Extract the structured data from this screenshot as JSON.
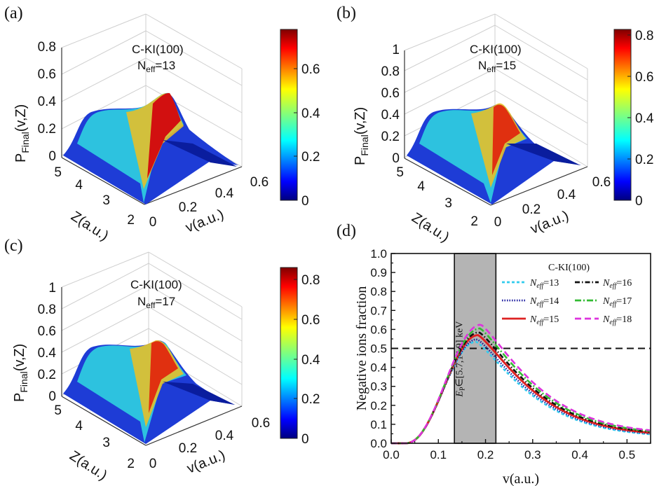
{
  "panels": [
    {
      "letter": "(a)",
      "material": "C-KI(100)",
      "neff_prefix": "N",
      "neff_sub": "eff",
      "neff_value": "=13",
      "zaxis_label": "P",
      "zaxis_sub": "Final",
      "zaxis_tail": "(v,Z)",
      "xaxis_label": "v(a.u.)",
      "yaxis_label": "Z(a.u.)",
      "z_ticks": [
        "0",
        "0.2",
        "0.4",
        "0.6",
        "0.8"
      ],
      "v_ticks": [
        "0",
        "0.2",
        "0.4",
        "0.6"
      ],
      "Z_ticks": [
        "5",
        "4",
        "3",
        "2"
      ],
      "colorbar_ticks": [
        "0",
        "0.2",
        "0.4",
        "0.6"
      ]
    },
    {
      "letter": "(b)",
      "material": "C-KI(100)",
      "neff_prefix": "N",
      "neff_sub": "eff",
      "neff_value": "=15",
      "zaxis_label": "P",
      "zaxis_sub": "Final",
      "zaxis_tail": "(v,Z)",
      "xaxis_label": "v(a.u.)",
      "yaxis_label": "Z(a.u.)",
      "z_ticks": [
        "0",
        "0.2",
        "0.4",
        "0.6",
        "0.8",
        "1"
      ],
      "v_ticks": [
        "0",
        "0.2",
        "0.4",
        "0.6"
      ],
      "Z_ticks": [
        "5",
        "4",
        "3",
        "2"
      ],
      "colorbar_ticks": [
        "0",
        "0.2",
        "0.4",
        "0.6",
        "0.8"
      ]
    },
    {
      "letter": "(c)",
      "material": "C-KI(100)",
      "neff_prefix": "N",
      "neff_sub": "eff",
      "neff_value": "=17",
      "zaxis_label": "P",
      "zaxis_sub": "Final",
      "zaxis_tail": "(v,Z)",
      "xaxis_label": "v(a.u.)",
      "yaxis_label": "Z(a.u.)",
      "z_ticks": [
        "0",
        "0.2",
        "0.4",
        "0.6",
        "0.8",
        "1"
      ],
      "v_ticks": [
        "0",
        "0.2",
        "0.4",
        "0.6"
      ],
      "Z_ticks": [
        "5",
        "4",
        "3",
        "2"
      ],
      "colorbar_ticks": [
        "0",
        "0.2",
        "0.4",
        "0.6",
        "0.8"
      ]
    }
  ],
  "panel_d_letter": "(d)",
  "chart_data": [
    {
      "type": "surface",
      "panel": "(a)",
      "x_label": "v(a.u.)",
      "y_label": "Z(a.u.)",
      "z_label": "P_Final(v,Z)",
      "v_range": [
        0,
        0.6
      ],
      "Z_range": [
        2,
        5
      ],
      "z_range": [
        0,
        0.8
      ],
      "colorbar_range": [
        0,
        0.78
      ],
      "colormap": "jet",
      "n_eff": 13
    },
    {
      "type": "surface",
      "panel": "(b)",
      "x_label": "v(a.u.)",
      "y_label": "Z(a.u.)",
      "z_label": "P_Final(v,Z)",
      "v_range": [
        0,
        0.6
      ],
      "Z_range": [
        2,
        5
      ],
      "z_range": [
        0,
        1
      ],
      "colorbar_range": [
        0,
        0.83
      ],
      "colormap": "jet",
      "n_eff": 15
    },
    {
      "type": "surface",
      "panel": "(c)",
      "x_label": "v(a.u.)",
      "y_label": "Z(a.u.)",
      "z_label": "P_Final(v,Z)",
      "v_range": [
        0,
        0.6
      ],
      "Z_range": [
        2,
        5
      ],
      "z_range": [
        0,
        1
      ],
      "colorbar_range": [
        0,
        0.86
      ],
      "colormap": "jet",
      "n_eff": 17
    },
    {
      "type": "line",
      "panel": "(d)",
      "xlabel": "v(a.u.)",
      "ylabel": "Negative ions fraction",
      "xlim": [
        0,
        0.55
      ],
      "ylim": [
        0,
        1.0
      ],
      "x_ticks": [
        "0.0",
        "0.1",
        "0.2",
        "0.3",
        "0.4",
        "0.5"
      ],
      "y_ticks": [
        "0.0",
        "0.1",
        "0.2",
        "0.3",
        "0.4",
        "0.5",
        "0.6",
        "0.7",
        "0.8",
        "0.9",
        "1.0"
      ],
      "legend_title": "C-KI(100)",
      "legend_position": "top-right",
      "reference_line": {
        "y": 0.5,
        "style": "dashed"
      },
      "shaded_band": {
        "x": [
          0.134,
          0.222
        ],
        "label_prefix": "E",
        "label_sub": "P",
        "label_text": "∈[5.7,14.9] keV"
      },
      "series": [
        {
          "name": "13",
          "color": "#33ccee",
          "dash": "4,3",
          "peak_v": 0.18,
          "peak_y": 0.535,
          "tail": 0.03
        },
        {
          "name": "14",
          "color": "#1a1a9e",
          "dash": "1.5,2",
          "peak_v": 0.182,
          "peak_y": 0.548,
          "tail": 0.033
        },
        {
          "name": "15",
          "color": "#dd2222",
          "dash": "",
          "peak_v": 0.184,
          "peak_y": 0.57,
          "tail": 0.036
        },
        {
          "name": "16",
          "color": "#111111",
          "dash": "7,3,1.5,3",
          "peak_v": 0.186,
          "peak_y": 0.585,
          "tail": 0.04
        },
        {
          "name": "17",
          "color": "#33bb33",
          "dash": "9,3,2,3",
          "peak_v": 0.188,
          "peak_y": 0.605,
          "tail": 0.043
        },
        {
          "name": "18",
          "color": "#dd33dd",
          "dash": "9,5",
          "peak_v": 0.19,
          "peak_y": 0.625,
          "tail": 0.046
        }
      ],
      "legend_prefix": "N",
      "legend_sub": "eff",
      "legend_eq": "="
    }
  ]
}
